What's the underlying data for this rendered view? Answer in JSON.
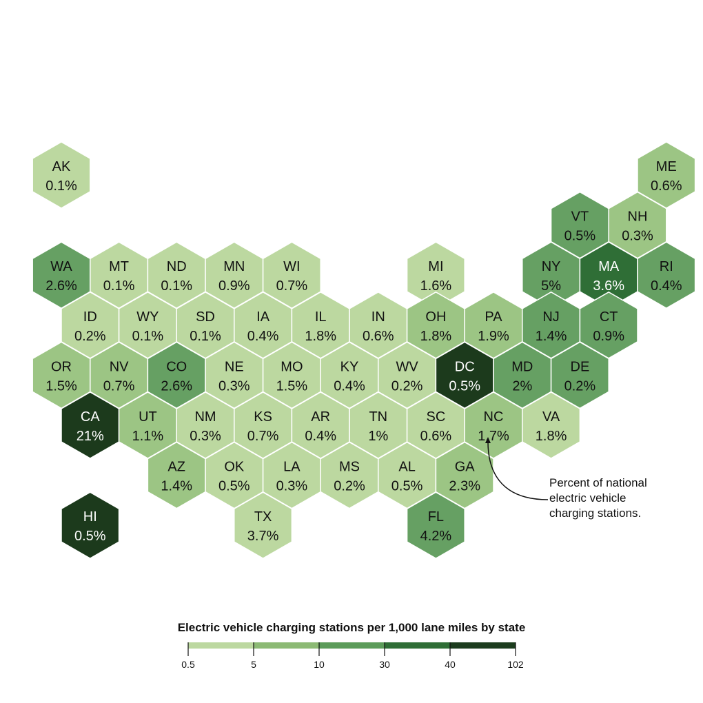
{
  "states": [
    {
      "abbr": "AK",
      "value": "0.1%",
      "bin": 0,
      "row": 0,
      "col": 0
    },
    {
      "abbr": "ME",
      "value": "0.6%",
      "bin": 1,
      "row": 0,
      "col": 10.5
    },
    {
      "abbr": "VT",
      "value": "0.5%",
      "bin": 2,
      "row": 1,
      "col": 9
    },
    {
      "abbr": "NH",
      "value": "0.3%",
      "bin": 1,
      "row": 1,
      "col": 10
    },
    {
      "abbr": "WA",
      "value": "2.6%",
      "bin": 2,
      "row": 2,
      "col": 0
    },
    {
      "abbr": "MT",
      "value": "0.1%",
      "bin": 0,
      "row": 2,
      "col": 1
    },
    {
      "abbr": "ND",
      "value": "0.1%",
      "bin": 0,
      "row": 2,
      "col": 2
    },
    {
      "abbr": "MN",
      "value": "0.9%",
      "bin": 0,
      "row": 2,
      "col": 3
    },
    {
      "abbr": "WI",
      "value": "0.7%",
      "bin": 0,
      "row": 2,
      "col": 4
    },
    {
      "abbr": "MI",
      "value": "1.6%",
      "bin": 0,
      "row": 2,
      "col": 6.5
    },
    {
      "abbr": "NY",
      "value": "5%",
      "bin": 2,
      "row": 2,
      "col": 8.5
    },
    {
      "abbr": "MA",
      "value": "3.6%",
      "bin": 3,
      "row": 2,
      "col": 9.5
    },
    {
      "abbr": "RI",
      "value": "0.4%",
      "bin": 2,
      "row": 2,
      "col": 10.5
    },
    {
      "abbr": "ID",
      "value": "0.2%",
      "bin": 0,
      "row": 3,
      "col": 0.5
    },
    {
      "abbr": "WY",
      "value": "0.1%",
      "bin": 0,
      "row": 3,
      "col": 1.5
    },
    {
      "abbr": "SD",
      "value": "0.1%",
      "bin": 0,
      "row": 3,
      "col": 2.5
    },
    {
      "abbr": "IA",
      "value": "0.4%",
      "bin": 0,
      "row": 3,
      "col": 3.5
    },
    {
      "abbr": "IL",
      "value": "1.8%",
      "bin": 0,
      "row": 3,
      "col": 4.5
    },
    {
      "abbr": "IN",
      "value": "0.6%",
      "bin": 0,
      "row": 3,
      "col": 5.5
    },
    {
      "abbr": "OH",
      "value": "1.8%",
      "bin": 1,
      "row": 3,
      "col": 6.5
    },
    {
      "abbr": "PA",
      "value": "1.9%",
      "bin": 1,
      "row": 3,
      "col": 7.5
    },
    {
      "abbr": "NJ",
      "value": "1.4%",
      "bin": 2,
      "row": 3,
      "col": 8.5
    },
    {
      "abbr": "CT",
      "value": "0.9%",
      "bin": 2,
      "row": 3,
      "col": 9.5
    },
    {
      "abbr": "OR",
      "value": "1.5%",
      "bin": 1,
      "row": 4,
      "col": 0
    },
    {
      "abbr": "NV",
      "value": "0.7%",
      "bin": 1,
      "row": 4,
      "col": 1
    },
    {
      "abbr": "CO",
      "value": "2.6%",
      "bin": 2,
      "row": 4,
      "col": 2
    },
    {
      "abbr": "NE",
      "value": "0.3%",
      "bin": 0,
      "row": 4,
      "col": 3
    },
    {
      "abbr": "MO",
      "value": "1.5%",
      "bin": 0,
      "row": 4,
      "col": 4
    },
    {
      "abbr": "KY",
      "value": "0.4%",
      "bin": 0,
      "row": 4,
      "col": 5
    },
    {
      "abbr": "WV",
      "value": "0.2%",
      "bin": 0,
      "row": 4,
      "col": 6
    },
    {
      "abbr": "DC",
      "value": "0.5%",
      "bin": 5,
      "row": 4,
      "col": 7
    },
    {
      "abbr": "MD",
      "value": "2%",
      "bin": 2,
      "row": 4,
      "col": 8
    },
    {
      "abbr": "DE",
      "value": "0.2%",
      "bin": 2,
      "row": 4,
      "col": 9
    },
    {
      "abbr": "CA",
      "value": "21%",
      "bin": 5,
      "row": 5,
      "col": 0.5
    },
    {
      "abbr": "UT",
      "value": "1.1%",
      "bin": 1,
      "row": 5,
      "col": 1.5
    },
    {
      "abbr": "NM",
      "value": "0.3%",
      "bin": 0,
      "row": 5,
      "col": 2.5
    },
    {
      "abbr": "KS",
      "value": "0.7%",
      "bin": 0,
      "row": 5,
      "col": 3.5
    },
    {
      "abbr": "AR",
      "value": "0.4%",
      "bin": 0,
      "row": 5,
      "col": 4.5
    },
    {
      "abbr": "TN",
      "value": "1%",
      "bin": 0,
      "row": 5,
      "col": 5.5
    },
    {
      "abbr": "SC",
      "value": "0.6%",
      "bin": 0,
      "row": 5,
      "col": 6.5
    },
    {
      "abbr": "NC",
      "value": "1.7%",
      "bin": 1,
      "row": 5,
      "col": 7.5
    },
    {
      "abbr": "VA",
      "value": "1.8%",
      "bin": 0,
      "row": 5,
      "col": 8.5
    },
    {
      "abbr": "AZ",
      "value": "1.4%",
      "bin": 1,
      "row": 6,
      "col": 2
    },
    {
      "abbr": "OK",
      "value": "0.5%",
      "bin": 0,
      "row": 6,
      "col": 3
    },
    {
      "abbr": "LA",
      "value": "0.3%",
      "bin": 0,
      "row": 6,
      "col": 4
    },
    {
      "abbr": "MS",
      "value": "0.2%",
      "bin": 0,
      "row": 6,
      "col": 5
    },
    {
      "abbr": "AL",
      "value": "0.5%",
      "bin": 0,
      "row": 6,
      "col": 6
    },
    {
      "abbr": "GA",
      "value": "2.3%",
      "bin": 1,
      "row": 6,
      "col": 7
    },
    {
      "abbr": "HI",
      "value": "0.5%",
      "bin": 5,
      "row": 7,
      "col": 0.5
    },
    {
      "abbr": "TX",
      "value": "3.7%",
      "bin": 0,
      "row": 7,
      "col": 3.5
    },
    {
      "abbr": "FL",
      "value": "4.2%",
      "bin": 2,
      "row": 7,
      "col": 6.5
    }
  ],
  "annotation": {
    "target": "NC",
    "lines": [
      "Percent of national",
      "electric vehicle",
      "charging stations."
    ]
  },
  "legend": {
    "title": "Electric vehicle charging stations per 1,000 lane miles by state",
    "ticks": [
      "0.5",
      "5",
      "10",
      "30",
      "40",
      "102"
    ],
    "colors": [
      "#bcd8a0",
      "#8cba74",
      "#5c9c5a",
      "#2f6e36",
      "#1c3d1e"
    ]
  },
  "palette": {
    "bins": [
      "#bcd8a0",
      "#9cc584",
      "#66a063",
      "#2f6e36",
      "#24522a",
      "#1c3a1c"
    ],
    "text_dark": "#111111",
    "text_light": "#ffffff"
  }
}
